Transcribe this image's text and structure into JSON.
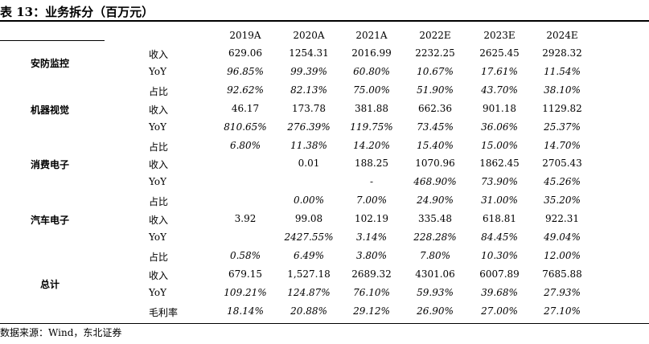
{
  "title": "表 13：业务拆分（百万元）",
  "source": "数据来源：Wind，东北证券",
  "headers": [
    "2019A",
    "2020A",
    "2021A",
    "2022E",
    "2023E",
    "2024E"
  ],
  "segments": [
    {
      "label": "安防监控",
      "rows": [
        0,
        1
      ]
    },
    {
      "label": "机器视觉",
      "rows": [
        2,
        3,
        4
      ]
    },
    {
      "label": "消费电子",
      "rows": [
        5,
        6,
        7
      ]
    },
    {
      "label": "汽车电子",
      "rows": [
        8,
        9,
        10
      ]
    },
    {
      "label": "总计",
      "rows": [
        11,
        12,
        13,
        14
      ]
    }
  ],
  "rows": [
    {
      "metric": "收入",
      "italic": false,
      "values": [
        "629.06",
        "1254.31",
        "2016.99",
        "2232.25",
        "2625.45",
        "2928.32"
      ]
    },
    {
      "metric": "YoY",
      "italic": true,
      "values": [
        "96.85%",
        "99.39%",
        "60.80%",
        "10.67%",
        "17.61%",
        "11.54%"
      ]
    },
    {
      "metric": "占比",
      "italic": true,
      "values": [
        "92.62%",
        "82.13%",
        "75.00%",
        "51.90%",
        "43.70%",
        "38.10%"
      ]
    },
    {
      "metric": "收入",
      "italic": false,
      "values": [
        "46.17",
        "173.78",
        "381.88",
        "662.36",
        "901.18",
        "1129.82"
      ]
    },
    {
      "metric": "YoY",
      "italic": true,
      "values": [
        "810.65%",
        "276.39%",
        "119.75%",
        "73.45%",
        "36.06%",
        "25.37%"
      ]
    },
    {
      "metric": "占比",
      "italic": true,
      "values": [
        "6.80%",
        "11.38%",
        "14.20%",
        "15.40%",
        "15.00%",
        "14.70%"
      ]
    },
    {
      "metric": "收入",
      "italic": false,
      "values": [
        "",
        "0.01",
        "188.25",
        "1070.96",
        "1862.45",
        "2705.43"
      ]
    },
    {
      "metric": "YoY",
      "italic": true,
      "values": [
        "",
        "",
        "-",
        "468.90%",
        "73.90%",
        "45.26%"
      ]
    },
    {
      "metric": "占比",
      "italic": true,
      "values": [
        "",
        "0.00%",
        "7.00%",
        "24.90%",
        "31.00%",
        "35.20%"
      ]
    },
    {
      "metric": "收入",
      "italic": false,
      "values": [
        "3.92",
        "99.08",
        "102.19",
        "335.48",
        "618.81",
        "922.31"
      ]
    },
    {
      "metric": "YoY",
      "italic": true,
      "values": [
        "",
        "2427.55%",
        "3.14%",
        "228.28%",
        "84.45%",
        "49.04%"
      ]
    },
    {
      "metric": "占比",
      "italic": true,
      "values": [
        "0.58%",
        "6.49%",
        "3.80%",
        "7.80%",
        "10.30%",
        "12.00%"
      ]
    },
    {
      "metric": "收入",
      "italic": false,
      "values": [
        "679.15",
        "1,527.18",
        "2689.32",
        "4301.06",
        "6007.89",
        "7685.88"
      ]
    },
    {
      "metric": "YoY",
      "italic": true,
      "values": [
        "109.21%",
        "124.87%",
        "76.10%",
        "59.93%",
        "39.68%",
        "27.93%"
      ]
    },
    {
      "metric": "毛利率",
      "italic": true,
      "values": [
        "18.14%",
        "20.88%",
        "29.12%",
        "26.90%",
        "27.00%",
        "27.10%"
      ]
    }
  ]
}
